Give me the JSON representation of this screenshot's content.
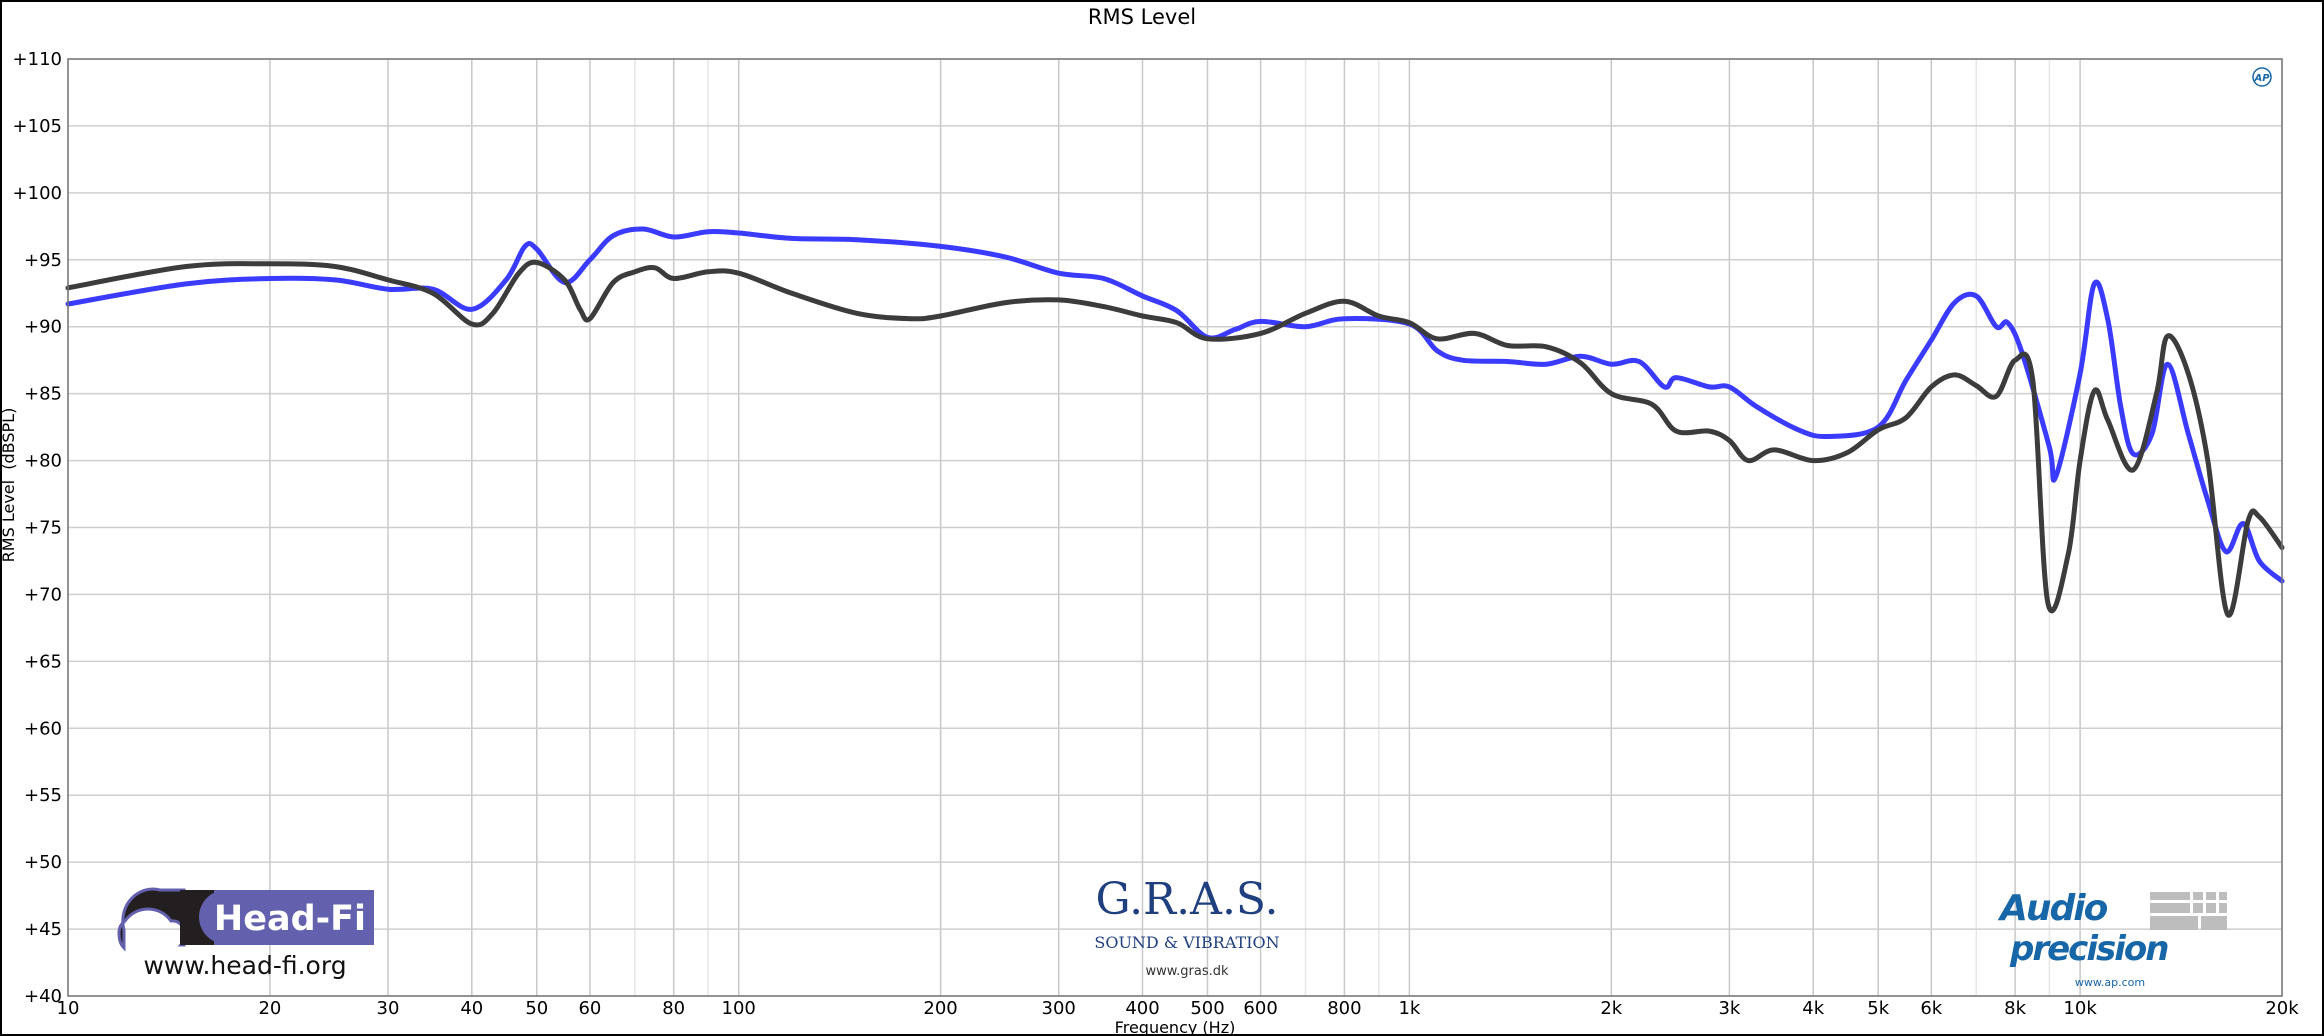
{
  "chart_data": {
    "type": "line",
    "title": "RMS Level",
    "xlabel": "Frequency (Hz)",
    "ylabel": "RMS Level  (dBSPL)",
    "x_scale": "log",
    "xlim": [
      10,
      20000
    ],
    "ylim": [
      40,
      110
    ],
    "grid": true,
    "x_ticks": [
      {
        "v": 10,
        "label": "10"
      },
      {
        "v": 20,
        "label": "20"
      },
      {
        "v": 30,
        "label": "30"
      },
      {
        "v": 40,
        "label": "40"
      },
      {
        "v": 50,
        "label": "50"
      },
      {
        "v": 60,
        "label": "60"
      },
      {
        "v": 80,
        "label": "80"
      },
      {
        "v": 100,
        "label": "100"
      },
      {
        "v": 200,
        "label": "200"
      },
      {
        "v": 300,
        "label": "300"
      },
      {
        "v": 400,
        "label": "400"
      },
      {
        "v": 500,
        "label": "500"
      },
      {
        "v": 600,
        "label": "600"
      },
      {
        "v": 800,
        "label": "800"
      },
      {
        "v": 1000,
        "label": "1k"
      },
      {
        "v": 2000,
        "label": "2k"
      },
      {
        "v": 3000,
        "label": "3k"
      },
      {
        "v": 4000,
        "label": "4k"
      },
      {
        "v": 5000,
        "label": "5k"
      },
      {
        "v": 6000,
        "label": "6k"
      },
      {
        "v": 8000,
        "label": "8k"
      },
      {
        "v": 10000,
        "label": "10k"
      },
      {
        "v": 20000,
        "label": "20k"
      }
    ],
    "y_ticks": [
      {
        "v": 40,
        "label": "+40"
      },
      {
        "v": 45,
        "label": "+45"
      },
      {
        "v": 50,
        "label": "+50"
      },
      {
        "v": 55,
        "label": "+55"
      },
      {
        "v": 60,
        "label": "+60"
      },
      {
        "v": 65,
        "label": "+65"
      },
      {
        "v": 70,
        "label": "+70"
      },
      {
        "v": 75,
        "label": "+75"
      },
      {
        "v": 80,
        "label": "+80"
      },
      {
        "v": 85,
        "label": "+85"
      },
      {
        "v": 90,
        "label": "+90"
      },
      {
        "v": 95,
        "label": "+95"
      },
      {
        "v": 100,
        "label": "+100"
      },
      {
        "v": 105,
        "label": "+105"
      },
      {
        "v": 110,
        "label": "+110"
      }
    ],
    "series": [
      {
        "color": "#3b3bff",
        "x": [
          10,
          15,
          20,
          25,
          30,
          35,
          40,
          45,
          48,
          50,
          55,
          60,
          65,
          72,
          80,
          90,
          100,
          120,
          150,
          200,
          250,
          300,
          350,
          400,
          450,
          500,
          550,
          600,
          700,
          800,
          1000,
          1100,
          1200,
          1400,
          1600,
          1800,
          2000,
          2200,
          2400,
          2500,
          2800,
          3000,
          3300,
          3800,
          4200,
          5000,
          5500,
          6000,
          6500,
          7000,
          7500,
          7800,
          8200,
          9000,
          9200,
          10000,
          10500,
          11000,
          11500,
          12000,
          12800,
          13500,
          14500,
          15500,
          16500,
          17500,
          18500,
          20000
        ],
        "y": [
          91.7,
          93.2,
          93.6,
          93.5,
          92.8,
          92.8,
          91.3,
          93.5,
          96,
          95.8,
          93.3,
          95,
          96.8,
          97.3,
          96.7,
          97.1,
          97.0,
          96.6,
          96.5,
          96.0,
          95.2,
          94.0,
          93.6,
          92.3,
          91.2,
          89.2,
          89.8,
          90.4,
          90.0,
          90.6,
          90.2,
          88.2,
          87.5,
          87.4,
          87.2,
          87.8,
          87.2,
          87.4,
          85.5,
          86.2,
          85.5,
          85.5,
          84.0,
          82.3,
          81.8,
          82.5,
          86.0,
          89.0,
          91.8,
          92.3,
          90.0,
          90.3,
          88.0,
          81.0,
          78.8,
          86.5,
          93.2,
          90.5,
          84.0,
          80.5,
          82.0,
          87.2,
          82.0,
          77.0,
          73.2,
          75.3,
          72.5,
          71.0
        ]
      },
      {
        "color": "#3c3c3c",
        "x": [
          10,
          15,
          20,
          25,
          30,
          35,
          40,
          43,
          47,
          50,
          55,
          58,
          60,
          65,
          70,
          75,
          80,
          90,
          100,
          120,
          150,
          180,
          200,
          250,
          300,
          350,
          400,
          450,
          500,
          600,
          700,
          800,
          900,
          1000,
          1100,
          1250,
          1400,
          1600,
          1800,
          2000,
          2300,
          2500,
          2800,
          3000,
          3200,
          3500,
          4000,
          4500,
          5000,
          5500,
          6000,
          6500,
          7000,
          7500,
          8000,
          8500,
          8950,
          9600,
          10000,
          10500,
          11000,
          12000,
          13000,
          13500,
          14500,
          15500,
          16600,
          17800,
          18500,
          20000
        ],
        "y": [
          92.9,
          94.5,
          94.7,
          94.5,
          93.5,
          92.5,
          90.2,
          91.0,
          94.0,
          94.8,
          93.5,
          91.3,
          90.6,
          93.3,
          94.1,
          94.4,
          93.6,
          94.1,
          94.0,
          92.5,
          91.0,
          90.6,
          90.8,
          91.8,
          92.0,
          91.5,
          90.8,
          90.3,
          89.1,
          89.5,
          91.0,
          91.9,
          90.8,
          90.3,
          89.1,
          89.5,
          88.6,
          88.5,
          87.3,
          85.0,
          84.2,
          82.2,
          82.2,
          81.5,
          80.0,
          80.8,
          80.0,
          80.6,
          82.3,
          83.2,
          85.5,
          86.4,
          85.6,
          84.8,
          87.5,
          86.0,
          69.4,
          73.0,
          80.0,
          85.2,
          83.0,
          79.3,
          85.0,
          89.3,
          86.5,
          80.0,
          68.5,
          75.5,
          75.8,
          73.5
        ]
      }
    ]
  },
  "logos": {
    "headfi": {
      "name": "Head-Fi",
      "url": "www.head-fi.org",
      "color": "#6361ad"
    },
    "gras": {
      "name": "G.R.A.S.",
      "tagline": "SOUND & VIBRATION",
      "url": "www.gras.dk",
      "color": "#1f3f7f"
    },
    "ap": {
      "line1": "Audio",
      "line2": "precision",
      "url": "www.ap.com",
      "badge": "AP",
      "color": "#1766a8"
    }
  }
}
